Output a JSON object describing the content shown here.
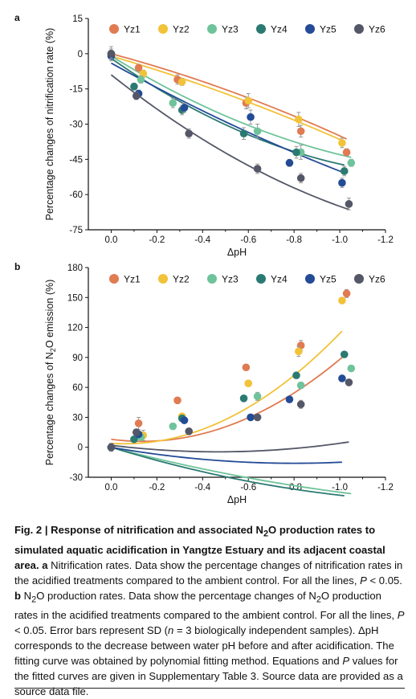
{
  "chart_data": [
    {
      "type": "scatter",
      "panel_label": "a",
      "title": "",
      "xlabel": "ΔpH",
      "ylabel": "Percentage changes of nitrification rate (%)",
      "xlim": [
        0.1,
        -1.2
      ],
      "ylim": [
        -75,
        15
      ],
      "xticks": [
        "0.0",
        "-0.2",
        "-0.4",
        "-0.6",
        "-0.8",
        "-1.0",
        "-1.2"
      ],
      "yticks": [
        "15",
        "0",
        "-15",
        "-30",
        "-45",
        "-60",
        "-75"
      ],
      "legend_position": "top",
      "series": [
        {
          "name": "Yz1",
          "color": "#e07b52",
          "x": [
            0,
            -0.12,
            -0.29,
            -0.59,
            -0.83,
            -1.03
          ],
          "y": [
            0,
            -6,
            -11,
            -21,
            -33,
            -42
          ],
          "err": [
            3,
            1.5,
            2,
            2.5,
            2.5,
            1.5
          ],
          "fit": [
            0,
            26,
            -9
          ]
        },
        {
          "name": "Yz2",
          "color": "#f2c238",
          "x": [
            0,
            -0.14,
            -0.31,
            -0.6,
            -0.82,
            -1.01
          ],
          "y": [
            0,
            -8.5,
            -12,
            -20,
            -28,
            -38
          ],
          "err": [
            2,
            1.5,
            1.5,
            3,
            3,
            2
          ],
          "fit": [
            -1,
            28.5,
            -7
          ]
        },
        {
          "name": "Yz3",
          "color": "#6fc39a",
          "x": [
            0,
            -0.13,
            -0.27,
            -0.64,
            -0.83,
            -1.05
          ],
          "y": [
            0,
            -11,
            -21,
            -33,
            -42,
            -46.5
          ],
          "err": [
            2,
            1.5,
            2,
            3,
            3,
            1.5
          ],
          "fit": [
            -1,
            60,
            18
          ]
        },
        {
          "name": "Yz4",
          "color": "#2b7a72",
          "x": [
            0,
            -0.1,
            -0.31,
            -0.58,
            -0.81,
            -1.02
          ],
          "y": [
            0,
            -14,
            -24,
            -34,
            -42,
            -50
          ],
          "err": [
            2,
            1.5,
            2,
            2.5,
            2.5,
            2
          ],
          "fit": [
            -2,
            68,
            23
          ]
        },
        {
          "name": "Yz5",
          "color": "#234b96",
          "x": [
            0,
            -0.12,
            -0.32,
            -0.61,
            -0.78,
            -1.01
          ],
          "y": [
            -1,
            -17,
            -23,
            -27,
            -46.5,
            -55
          ],
          "err": [
            2,
            1.5,
            2,
            3,
            1.5,
            2
          ],
          "fit": [
            -4,
            54,
            8
          ]
        },
        {
          "name": "Yz6",
          "color": "#545767",
          "x": [
            0,
            -0.11,
            -0.34,
            -0.64,
            -0.83,
            -1.04
          ],
          "y": [
            0,
            -18,
            -34,
            -49,
            -53,
            -64
          ],
          "err": [
            2,
            1.5,
            2,
            2,
            2,
            2.5
          ],
          "fit": [
            -9,
            77,
            21
          ]
        }
      ]
    },
    {
      "type": "scatter",
      "panel_label": "b",
      "title": "",
      "xlabel": "ΔpH",
      "ylabel": "Percentage changes of N₂O emission (%)",
      "xlim": [
        0.1,
        -1.2
      ],
      "ylim": [
        -30,
        180
      ],
      "xticks": [
        "0.0",
        "-0.2",
        "-0.4",
        "-0.6",
        "-0.8",
        "-1.0",
        "-1.2"
      ],
      "yticks": [
        "180",
        "150",
        "120",
        "90",
        "60",
        "30",
        "0",
        "-30"
      ],
      "legend_position": "top",
      "series": [
        {
          "name": "Yz1",
          "color": "#e07b52",
          "x": [
            0,
            -0.12,
            -0.29,
            -0.59,
            -0.83,
            -1.03
          ],
          "y": [
            0,
            24,
            47,
            80,
            102,
            154
          ],
          "err": [
            4,
            6,
            3,
            3,
            5,
            4
          ],
          "fit": [
            8,
            30,
            110
          ]
        },
        {
          "name": "Yz2",
          "color": "#f2c238",
          "x": [
            0,
            -0.14,
            -0.31,
            -0.6,
            -0.82,
            -1.01
          ],
          "y": [
            0,
            12,
            31,
            64,
            96,
            147
          ],
          "err": [
            4,
            5,
            3,
            3,
            5,
            3
          ],
          "fit": [
            4,
            15,
            125
          ]
        },
        {
          "name": "Yz3",
          "color": "#6fc39a",
          "x": [
            0,
            -0.13,
            -0.27,
            -0.64,
            -0.83,
            -1.05
          ],
          "y": [
            0,
            10,
            21,
            51,
            62,
            79
          ],
          "err": [
            3,
            3,
            3,
            4,
            3,
            3
          ],
          "fit": [
            0,
            60,
            15
          ]
        },
        {
          "name": "Yz4",
          "color": "#2b7a72",
          "x": [
            0,
            -0.1,
            -0.31,
            -0.58,
            -0.81,
            -1.02
          ],
          "y": [
            0,
            8,
            29,
            49,
            72,
            93
          ],
          "err": [
            3,
            3,
            3,
            3,
            3,
            3
          ],
          "fit": [
            0,
            70,
            22
          ]
        },
        {
          "name": "Yz5",
          "color": "#234b96",
          "x": [
            0,
            -0.12,
            -0.32,
            -0.61,
            -0.78,
            -1.01
          ],
          "y": [
            0,
            13,
            27,
            30,
            48,
            69
          ],
          "err": [
            3,
            3,
            3,
            2,
            3,
            3
          ],
          "fit": [
            0,
            40,
            25
          ]
        },
        {
          "name": "Yz6",
          "color": "#545767",
          "x": [
            0,
            -0.11,
            -0.34,
            -0.64,
            -0.83,
            -1.04
          ],
          "y": [
            0,
            15,
            16,
            30,
            43,
            65
          ],
          "err": [
            3,
            3,
            2,
            2,
            4,
            3
          ],
          "fit": [
            2,
            28,
            30
          ]
        }
      ]
    }
  ],
  "caption": {
    "fig_label": "Fig. 2 | Response of nitrification and associated N",
    "fig_sub": "2",
    "fig_title_rest": "O production rates to simulated aquatic acidification in Yangtze Estuary and its adjacent coastal area.",
    "part_a_label": "a",
    "part_a_text": "Nitrification rates. Data show the percentage changes of nitrification rates in the acidified treatments compared to the ambient control. For all the lines,",
    "p_symbol": "P",
    "p_value_text": "< 0.05.",
    "part_b_label": "b",
    "part_b_text_1": "N",
    "part_b_sub_1": "2",
    "part_b_text_2": "O production rates. Data show the percentage changes of N",
    "part_b_sub_2": "2",
    "part_b_text_3": "O production rates in the acidified treatments compared to the ambient control. For all the lines,",
    "part_b_p_value": "< 0.05. Error bars represent SD (",
    "n_symbol": "n",
    "n_text": "= 3 biologically independent samples). ΔpH corresponds to the decrease between water pH before and after acidification. The fitting curve was obtained by polynomial fitting method. Equations and",
    "p_tail_text": "values for the fitted curves are given in Supplementary Table 3. Source data are provided as a source data file."
  }
}
